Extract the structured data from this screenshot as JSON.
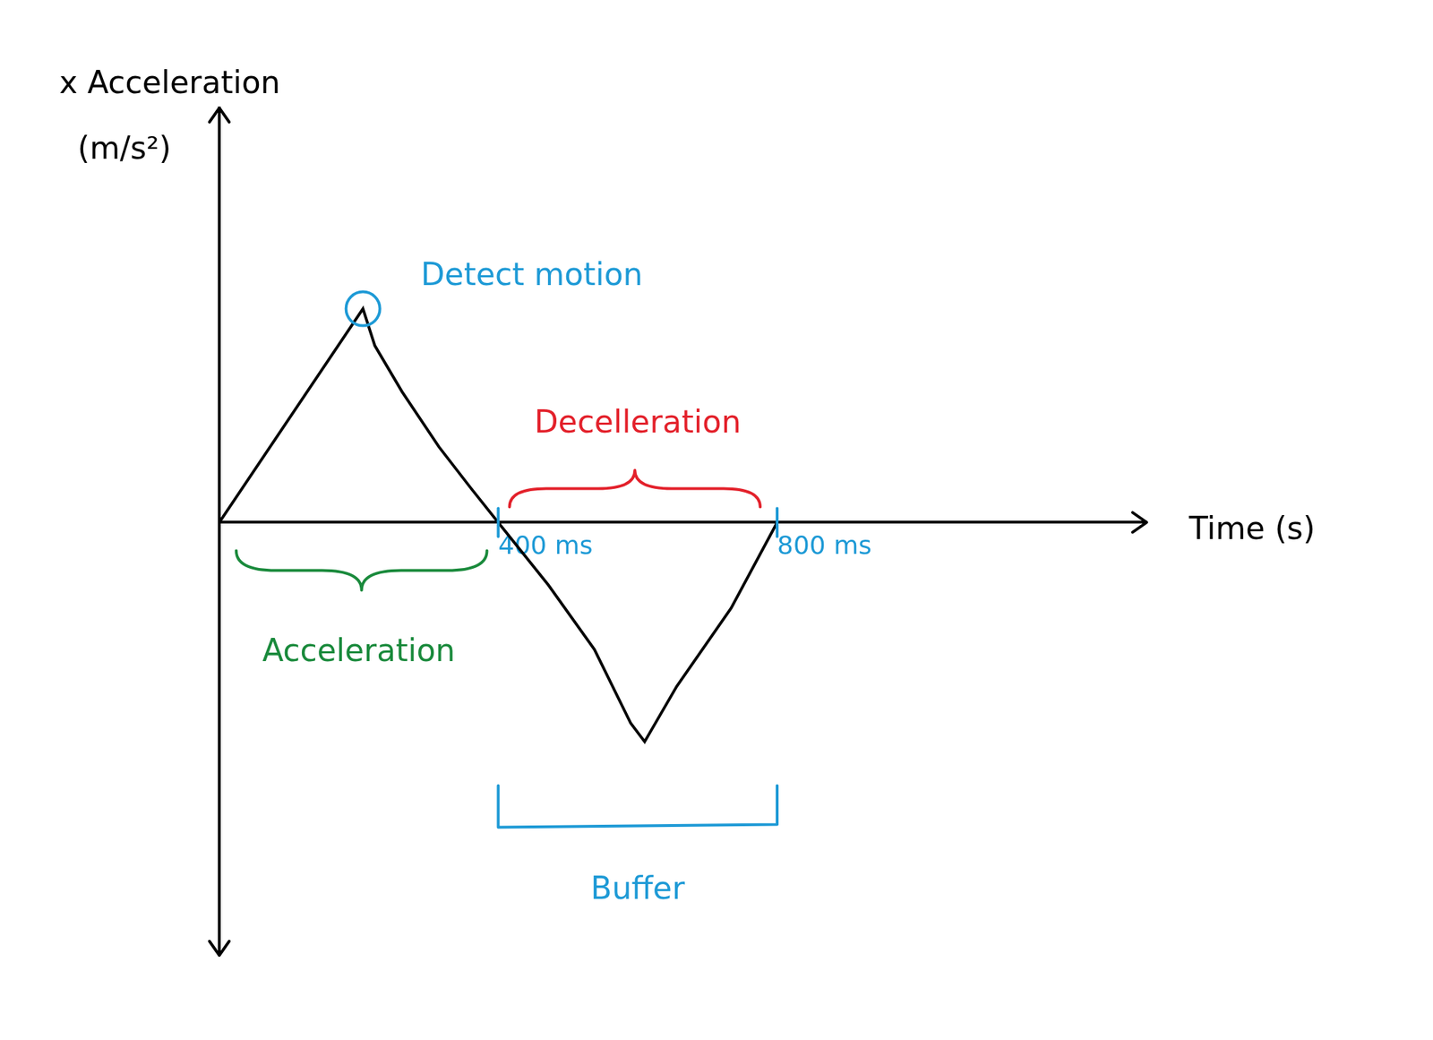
{
  "chart_data": {
    "type": "line",
    "x_label": "Time (s)",
    "y_label": "x Acceleration (m/s²)",
    "x": [
      0,
      0.206,
      0.223,
      0.262,
      0.315,
      0.361,
      0.4,
      0.472,
      0.538,
      0.59,
      0.61,
      0.656,
      0.734,
      0.8
    ],
    "values": [
      0,
      2.32,
      1.92,
      1.42,
      0.82,
      0.37,
      0,
      -0.68,
      -1.38,
      -2.18,
      -2.38,
      -1.78,
      -0.93,
      0
    ],
    "color": "#000000",
    "xlim": [
      0,
      1.33
    ],
    "ylim": [
      -4.7,
      4.5
    ],
    "xticks": [
      {
        "value": 0.4,
        "label": "400 ms"
      },
      {
        "value": 0.8,
        "label": "800 ms"
      }
    ],
    "yticks": [],
    "tick_labels": "x",
    "grid": false,
    "annotations": [
      {
        "text": "Detect motion",
        "x": 0.206,
        "y": 2.32,
        "color": "#1e9ad6",
        "marker": "circle"
      },
      {
        "text": "Acceleration",
        "span": [
          0,
          0.4
        ],
        "color": "#1a8a3c",
        "marker": "brace-below"
      },
      {
        "text": "Decelleration",
        "span": [
          0.4,
          0.8
        ],
        "color": "#e3212b",
        "marker": "brace-above"
      },
      {
        "text": "Buffer",
        "span": [
          0.4,
          0.8
        ],
        "color": "#1e9ad6",
        "marker": "bracket-below"
      }
    ]
  }
}
